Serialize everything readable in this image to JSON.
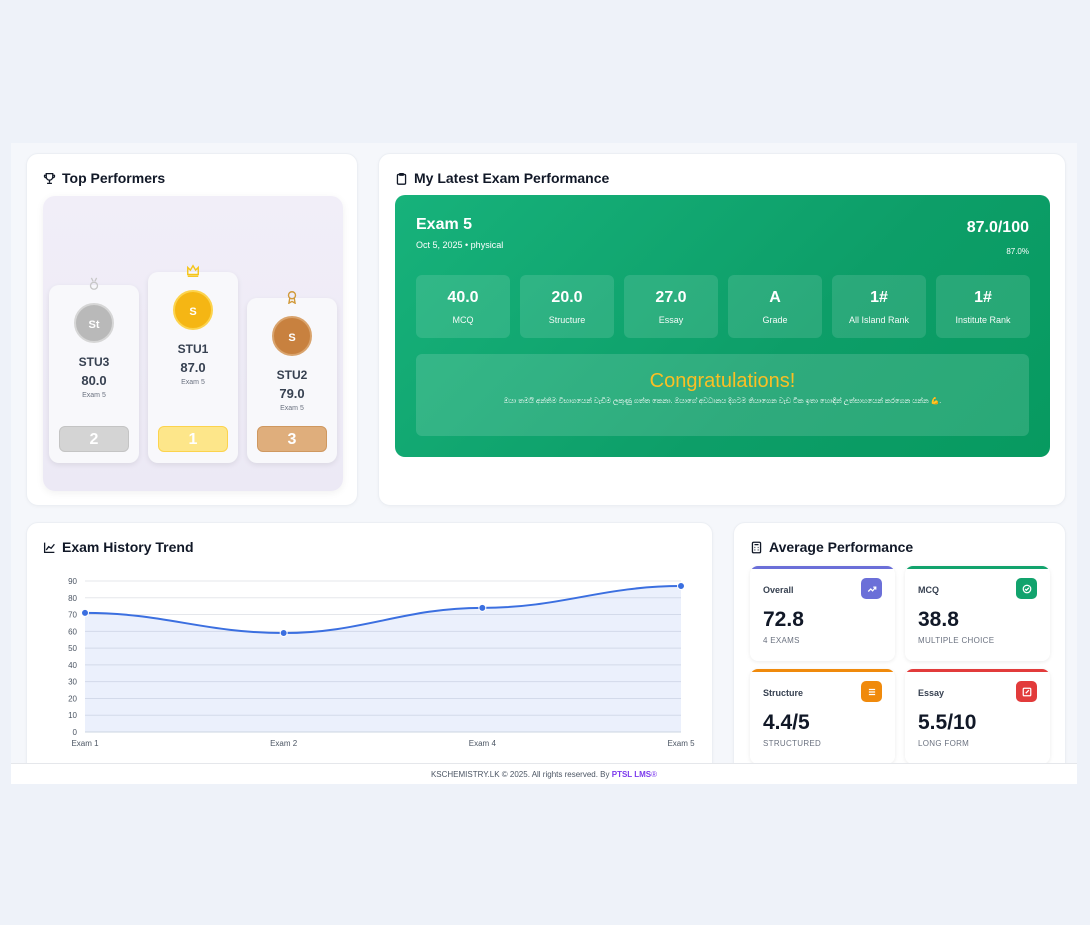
{
  "top_performers": {
    "title": "Top Performers",
    "podium": [
      {
        "place": 2,
        "initials": "St",
        "name": "STU3",
        "score": "80.0",
        "exam": "Exam 5",
        "rank_label": "2"
      },
      {
        "place": 1,
        "initials": "S",
        "name": "STU1",
        "score": "87.0",
        "exam": "Exam 5",
        "rank_label": "1"
      },
      {
        "place": 3,
        "initials": "S",
        "name": "STU2",
        "score": "79.0",
        "exam": "Exam 5",
        "rank_label": "3"
      }
    ]
  },
  "latest_exam": {
    "title": "My Latest Exam Performance",
    "exam_name": "Exam 5",
    "meta": "Oct 5, 2025 • physical",
    "score": "87.0/100",
    "percent": "87.0%",
    "stats": [
      {
        "value": "40.0",
        "label": "MCQ"
      },
      {
        "value": "20.0",
        "label": "Structure"
      },
      {
        "value": "27.0",
        "label": "Essay"
      },
      {
        "value": "A",
        "label": "Grade"
      },
      {
        "value": "1#",
        "label": "All Island Rank"
      },
      {
        "value": "1#",
        "label": "Institute Rank"
      }
    ],
    "congrats_title": "Congratulations!",
    "congrats_message": "ඔයා තමයි අන්තිම විභාගයෙන් වැඩිම ලකුණු ගත්ත කෙනා. ඔයාගේ අවධානය දිගටම තියාගෙන වැඩ ටික ඉතා හොඳින් උත්සාහයෙන් කරගෙන යන්න 💪."
  },
  "history": {
    "title": "Exam History Trend",
    "chart_data": {
      "type": "line",
      "categories": [
        "Exam 1",
        "Exam 2",
        "Exam 4",
        "Exam 5"
      ],
      "values": [
        71,
        59,
        74,
        87
      ],
      "ylim": [
        0,
        90
      ],
      "yticks": [
        0,
        10,
        20,
        30,
        40,
        50,
        60,
        70,
        80,
        90
      ],
      "grid": true,
      "color": "#3b6fe0"
    }
  },
  "average": {
    "title": "Average Performance",
    "items": [
      {
        "label": "Overall",
        "value": "72.8",
        "sub": "4 EXAMS",
        "color": "#6b6fd8",
        "icon": "trend-icon"
      },
      {
        "label": "MCQ",
        "value": "38.8",
        "sub": "MULTIPLE CHOICE",
        "color": "#12a36d",
        "icon": "check-circle-icon"
      },
      {
        "label": "Structure",
        "value": "4.4/5",
        "sub": "STRUCTURED",
        "color": "#f08a0c",
        "icon": "list-icon"
      },
      {
        "label": "Essay",
        "value": "5.5/10",
        "sub": "LONG FORM",
        "color": "#e23b3b",
        "icon": "edit-icon"
      }
    ]
  },
  "footer": {
    "text": "KSCHEMISTRY.LK © 2025. All rights reserved. By ",
    "brand": "PTSL LMS",
    "reg": "®"
  }
}
